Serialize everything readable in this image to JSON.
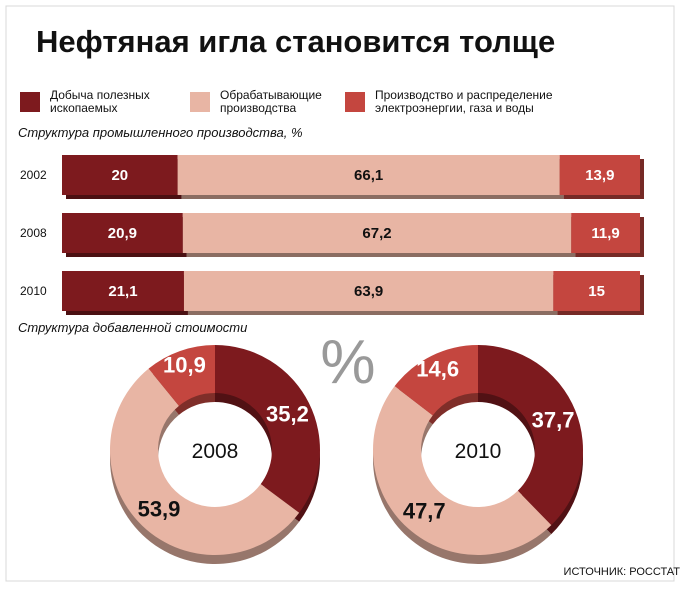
{
  "title": "Нефтяная игла становится толще",
  "source": "ИСТОЧНИК: РОССТАТ",
  "chart_data": [
    {
      "type": "bar",
      "stacked": true,
      "orientation": "horizontal",
      "subtitle": "Структура промышленного производства, %",
      "categories": [
        "2002",
        "2008",
        "2010"
      ],
      "xlim": [
        0,
        100
      ],
      "series": [
        {
          "name": "Добыча полезных ископаемых",
          "color": "#7d1a1e",
          "values": [
            20,
            20.9,
            21.1
          ],
          "value_labels": [
            "20",
            "20,9",
            "21,1"
          ]
        },
        {
          "name": "Обрабатывающие производства",
          "color": "#e8b5a4",
          "values": [
            66.1,
            67.2,
            63.9
          ],
          "value_labels": [
            "66,1",
            "67,2",
            "63,9"
          ]
        },
        {
          "name": "Производство и распределение электроэнергии, газа и воды",
          "color": "#c4463f",
          "values": [
            13.9,
            11.9,
            15
          ],
          "value_labels": [
            "13,9",
            "11,9",
            "15"
          ]
        }
      ]
    },
    {
      "type": "donut",
      "subtitle": "Структура добавленной стоимости",
      "unit": "%",
      "center_label": "2008",
      "values": [
        35.2,
        53.9,
        10.9
      ],
      "value_labels": [
        "35,2",
        "53,9",
        "10,9"
      ],
      "colors": [
        "#7d1a1e",
        "#e8b5a4",
        "#c4463f"
      ]
    },
    {
      "type": "donut",
      "center_label": "2010",
      "values": [
        37.7,
        47.7,
        14.6
      ],
      "value_labels": [
        "37,7",
        "47,7",
        "14,6"
      ],
      "colors": [
        "#7d1a1e",
        "#e8b5a4",
        "#c4463f"
      ]
    }
  ]
}
